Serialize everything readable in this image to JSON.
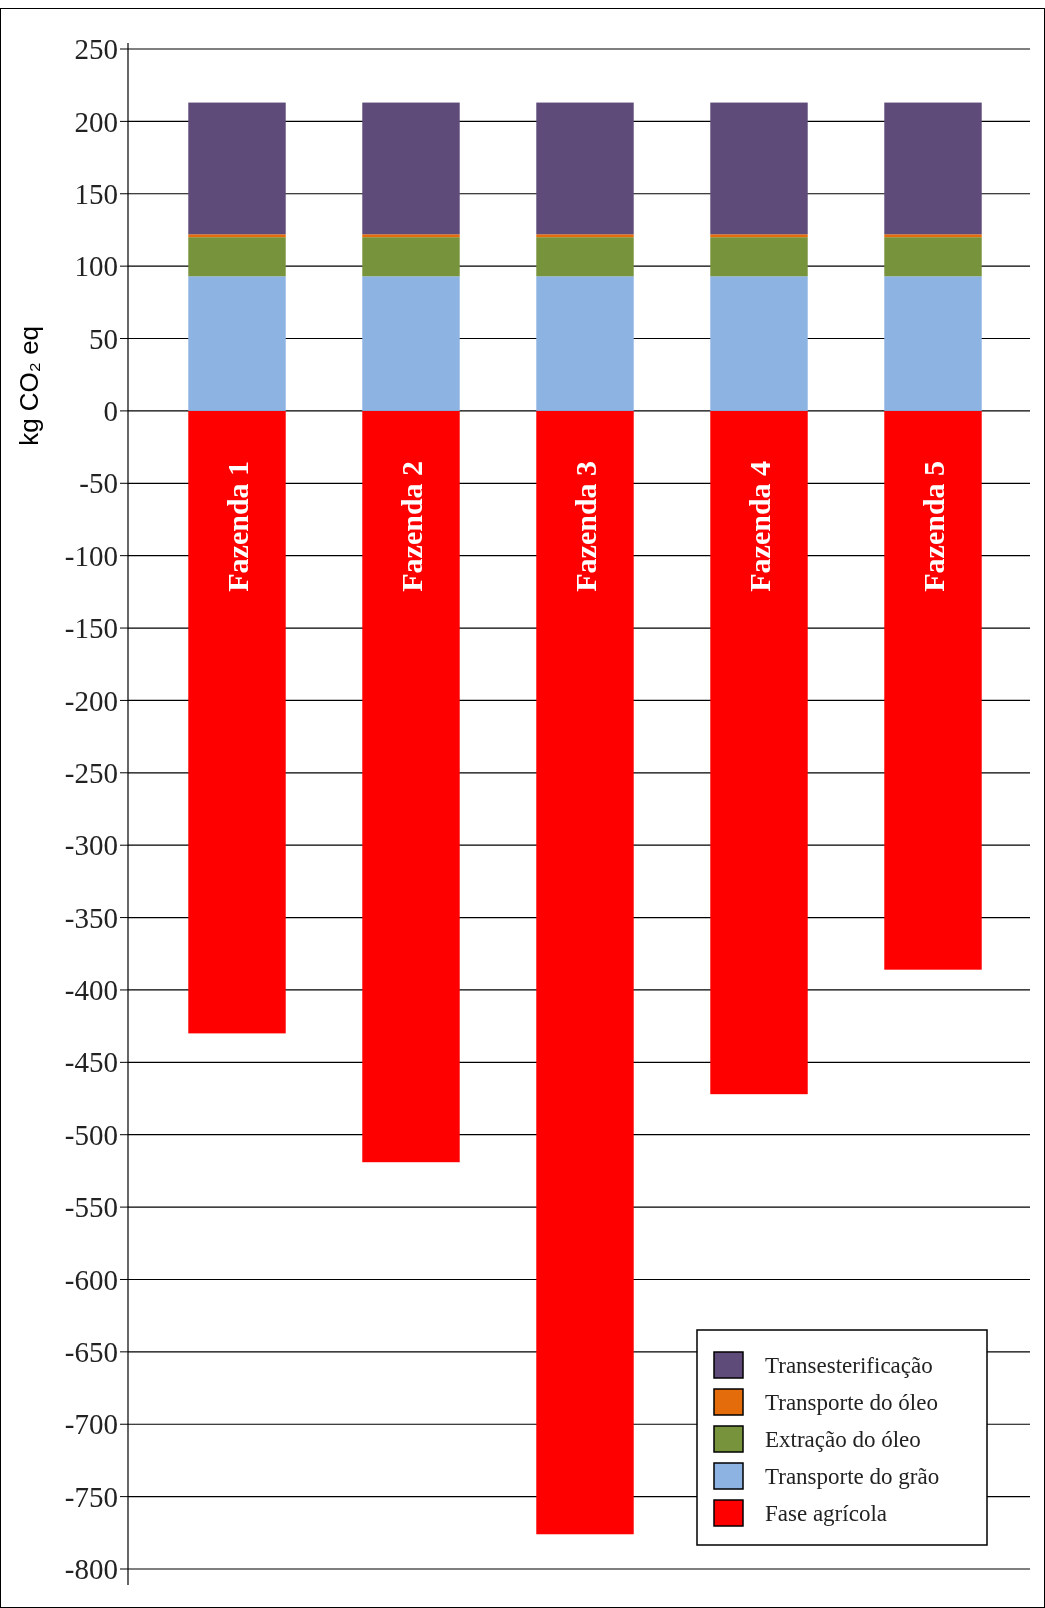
{
  "chart_data": {
    "type": "bar",
    "stacked": true,
    "ylabel": "kg CO₂ eq",
    "categories": [
      "Fazenda 1",
      "Fazenda 2",
      "Fazenda 3",
      "Fazenda 4",
      "Fazenda 5"
    ],
    "series": [
      {
        "name": "Fase agrícola",
        "color": "#ff0000",
        "values": [
          -430,
          -519,
          -776,
          -472,
          -386
        ]
      },
      {
        "name": "Transporte do grão",
        "color": "#8db3e2",
        "values": [
          93,
          93,
          93,
          93,
          93
        ]
      },
      {
        "name": "Extração do óleo",
        "color": "#77933c",
        "values": [
          27,
          27,
          27,
          27,
          27
        ]
      },
      {
        "name": "Transporte do óleo",
        "color": "#e46c0a",
        "values": [
          2,
          2,
          2,
          2,
          2
        ]
      },
      {
        "name": "Transesterificação",
        "color": "#5f4b7a",
        "values": [
          91,
          91,
          91,
          91,
          91
        ]
      }
    ],
    "ylim": [
      -800,
      250
    ],
    "yticks": [
      -800,
      -750,
      -700,
      -650,
      -600,
      -550,
      -500,
      -450,
      -400,
      -350,
      -300,
      -250,
      -200,
      -150,
      -100,
      -50,
      0,
      50,
      100,
      150,
      200,
      250
    ],
    "grid": "y",
    "legend": "bottom right"
  }
}
